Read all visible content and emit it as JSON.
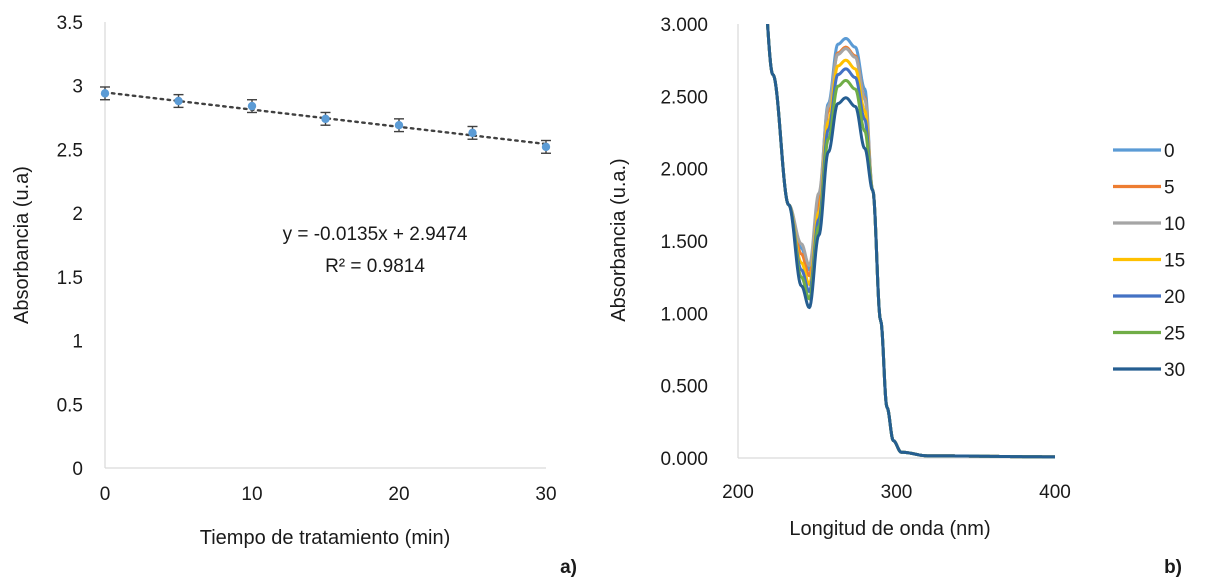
{
  "chart_data": [
    {
      "panel": "a)",
      "type": "scatter",
      "xlabel": "Tiempo de tratamiento (min)",
      "ylabel": "Absorbancia (u.a)",
      "xlim": [
        0,
        30
      ],
      "ylim": [
        0,
        3.5
      ],
      "x_ticks": [
        "0",
        "10",
        "20",
        "30"
      ],
      "y_ticks": [
        "0",
        "0.5",
        "1",
        "1.5",
        "2",
        "2.5",
        "3",
        "3.5"
      ],
      "x": [
        0,
        5,
        10,
        15,
        20,
        25,
        30
      ],
      "y": [
        2.94,
        2.88,
        2.84,
        2.74,
        2.69,
        2.63,
        2.52
      ],
      "error": [
        0.05,
        0.05,
        0.05,
        0.05,
        0.05,
        0.05,
        0.05
      ],
      "trendline": {
        "slope": -0.0135,
        "intercept": 2.9474,
        "style": "dotted"
      },
      "annotations": [
        "y = -0.0135x + 2.9474",
        "R² = 0.9814"
      ],
      "grid": false,
      "marker_color": "#5b9bd5"
    },
    {
      "panel": "b)",
      "type": "line",
      "xlabel": "Longitud de onda (nm)",
      "ylabel": "Absorbancia (u.a.)",
      "xlim": [
        200,
        400
      ],
      "ylim": [
        0,
        3
      ],
      "x_ticks": [
        "200",
        "300",
        "400"
      ],
      "y_ticks": [
        "0.000",
        "0.500",
        "1.000",
        "1.500",
        "2.000",
        "2.500",
        "3.000"
      ],
      "legend_position": "right",
      "grid": false,
      "series": [
        {
          "name": "0",
          "color": "#5b9bd5",
          "min_y": 1.3,
          "peak_y": 2.9
        },
        {
          "name": "5",
          "color": "#ed7d31",
          "min_y": 1.26,
          "peak_y": 2.84
        },
        {
          "name": "10",
          "color": "#a5a5a5",
          "min_y": 1.33,
          "peak_y": 2.83
        },
        {
          "name": "15",
          "color": "#ffc000",
          "min_y": 1.2,
          "peak_y": 2.75
        },
        {
          "name": "20",
          "color": "#4472c4",
          "min_y": 1.15,
          "peak_y": 2.69
        },
        {
          "name": "25",
          "color": "#70ad47",
          "min_y": 1.1,
          "peak_y": 2.61
        },
        {
          "name": "30",
          "color": "#255e91",
          "min_y": 1.04,
          "peak_y": 2.49
        }
      ]
    }
  ]
}
